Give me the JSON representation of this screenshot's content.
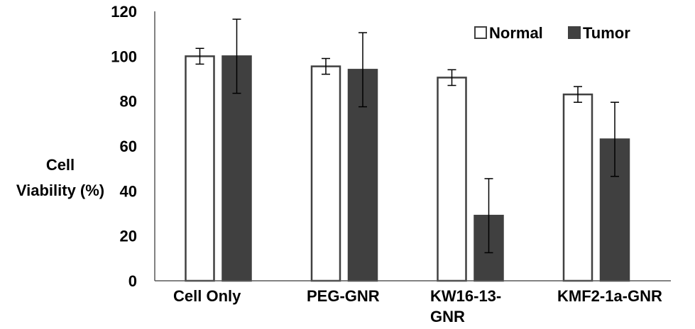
{
  "chart_data": {
    "type": "bar",
    "title": "",
    "ylabel": "Cell Viability (%)",
    "ylabel_lines": [
      "Cell",
      "Viability (%)"
    ],
    "xlabel": "",
    "ylim": [
      0,
      120
    ],
    "yticks": [
      0,
      20,
      40,
      60,
      80,
      100,
      120
    ],
    "grid": false,
    "legend_position": "top-right",
    "categories": [
      "Cell Only",
      "PEG-GNR",
      "KW16-13-GNR",
      "KMF2-1a-GNR"
    ],
    "category_lines": [
      [
        "Cell Only"
      ],
      [
        "PEG-GNR"
      ],
      [
        "KW16-13-",
        "GNR"
      ],
      [
        "KMF2-1a-GNR"
      ]
    ],
    "series": [
      {
        "name": "Normal",
        "fill": "#ffffff",
        "stroke": "#404040",
        "values": [
          100,
          95.5,
          90.5,
          83
        ],
        "errors": [
          3.5,
          3.5,
          3.5,
          3.5
        ]
      },
      {
        "name": "Tumor",
        "fill": "#404040",
        "stroke": "#404040",
        "values": [
          100,
          94,
          29,
          63
        ],
        "errors": [
          16.5,
          16.5,
          16.5,
          16.5
        ]
      }
    ]
  }
}
